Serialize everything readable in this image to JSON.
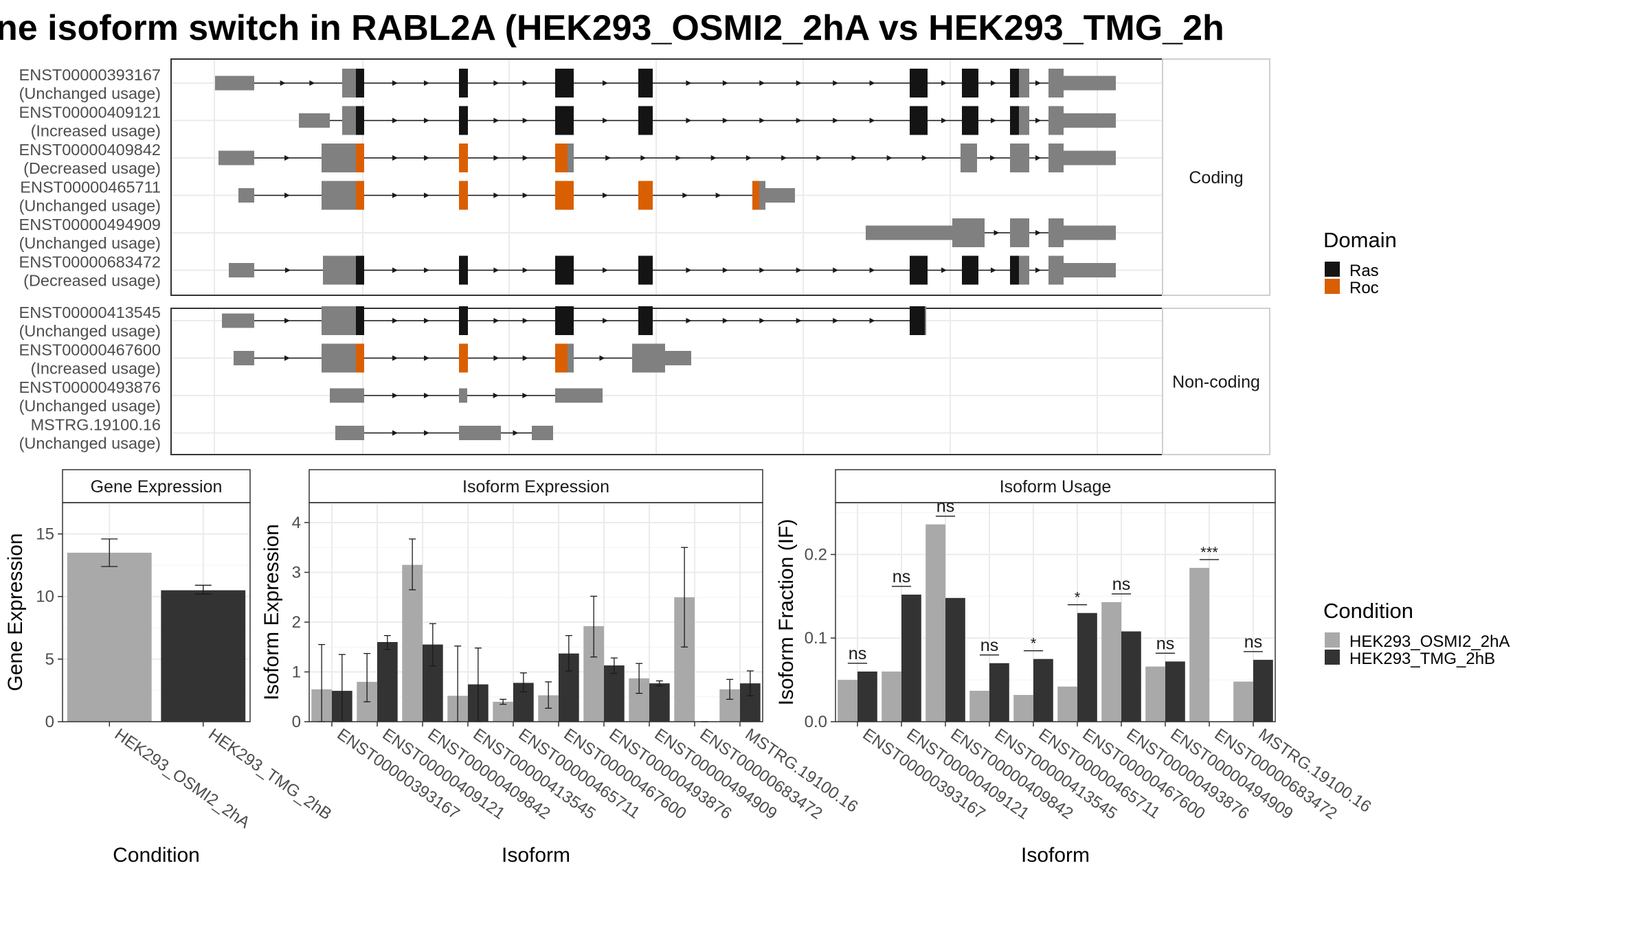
{
  "title": "ne isoform switch in RABL2A (HEK293_OSMI2_2hA vs HEK293_TMG_2h",
  "structure": {
    "panels": [
      {
        "label": "Coding",
        "rows": [
          {
            "id": "ENST00000393167",
            "usage": "(Unchanged usage)"
          },
          {
            "id": "ENST00000409121",
            "usage": "(Increased usage)"
          },
          {
            "id": "ENST00000409842",
            "usage": "(Decreased usage)"
          },
          {
            "id": "ENST00000465711",
            "usage": "(Unchanged usage)"
          },
          {
            "id": "ENST00000494909",
            "usage": "(Unchanged usage)"
          },
          {
            "id": "ENST00000683472",
            "usage": "(Decreased usage)"
          }
        ]
      },
      {
        "label": "Non-coding",
        "rows": [
          {
            "id": "ENST00000413545",
            "usage": "(Unchanged usage)"
          },
          {
            "id": "ENST00000467600",
            "usage": "(Increased usage)"
          },
          {
            "id": "ENST00000493876",
            "usage": "(Unchanged usage)"
          },
          {
            "id": "MSTRG.19100.16",
            "usage": "(Unchanged usage)"
          }
        ]
      }
    ],
    "legend": {
      "title": "Domain",
      "items": [
        {
          "label": "Ras",
          "color": "#141414"
        },
        {
          "label": "Roc",
          "color": "#d95f02"
        }
      ]
    },
    "colors": {
      "utr": "#808080",
      "ras": "#141414",
      "roc": "#d95f02"
    }
  },
  "chart_data": [
    {
      "type": "bar",
      "title": "Gene Expression",
      "xlabel": "Condition",
      "ylabel": "Gene Expression",
      "categories": [
        "HEK293_OSMI2_2hA",
        "HEK293_TMG_2hB"
      ],
      "values": [
        13.5,
        10.5
      ],
      "error": [
        [
          12.4,
          14.6
        ],
        [
          10.2,
          10.9
        ]
      ],
      "yticks": [
        0,
        5,
        10,
        15
      ],
      "ylim": [
        0,
        17.5
      ]
    },
    {
      "type": "bar",
      "title": "Isoform Expression",
      "xlabel": "Isoform",
      "ylabel": "Isoform Expression",
      "categories": [
        "ENST00000393167",
        "ENST00000409121",
        "ENST00000409842",
        "ENST00000413545",
        "ENST00000465711",
        "ENST00000467600",
        "ENST00000493876",
        "ENST00000494909",
        "ENST00000683472",
        "MSTRG.19100.16"
      ],
      "series": [
        {
          "name": "HEK293_OSMI2_2hA",
          "values": [
            0.65,
            0.8,
            3.15,
            0.52,
            0.4,
            0.53,
            1.92,
            0.87,
            2.5,
            0.65
          ],
          "error": [
            [
              0.0,
              1.55
            ],
            [
              0.4,
              1.37
            ],
            [
              2.65,
              3.67
            ],
            [
              0.0,
              1.52
            ],
            [
              0.35,
              0.45
            ],
            [
              0.27,
              0.8
            ],
            [
              1.3,
              2.52
            ],
            [
              0.57,
              1.17
            ],
            [
              1.5,
              3.5
            ],
            [
              0.45,
              0.85
            ]
          ]
        },
        {
          "name": "HEK293_TMG_2hB",
          "values": [
            0.62,
            1.6,
            1.55,
            0.75,
            0.78,
            1.37,
            1.13,
            0.77,
            0.0,
            0.77
          ],
          "error": [
            [
              0.0,
              1.35
            ],
            [
              1.45,
              1.73
            ],
            [
              1.12,
              1.97
            ],
            [
              0.0,
              1.48
            ],
            [
              0.6,
              0.98
            ],
            [
              1.02,
              1.73
            ],
            [
              0.97,
              1.28
            ],
            [
              0.72,
              0.82
            ],
            [
              0.0,
              0.0
            ],
            [
              0.52,
              1.02
            ]
          ]
        }
      ],
      "yticks": [
        0,
        1,
        2,
        3,
        4
      ],
      "ylim": [
        0,
        4.4
      ]
    },
    {
      "type": "bar",
      "title": "Isoform Usage",
      "xlabel": "Isoform",
      "ylabel": "Isoform Fraction (IF)",
      "categories": [
        "ENST00000393167",
        "ENST00000409121",
        "ENST00000409842",
        "ENST00000413545",
        "ENST00000465711",
        "ENST00000467600",
        "ENST00000493876",
        "ENST00000494909",
        "ENST00000683472",
        "MSTRG.19100.16"
      ],
      "series": [
        {
          "name": "HEK293_OSMI2_2hA",
          "values": [
            0.05,
            0.06,
            0.236,
            0.037,
            0.032,
            0.042,
            0.143,
            0.066,
            0.184,
            0.048
          ]
        },
        {
          "name": "HEK293_TMG_2hB",
          "values": [
            0.06,
            0.152,
            0.148,
            0.07,
            0.075,
            0.13,
            0.108,
            0.072,
            0.0,
            0.074
          ]
        }
      ],
      "significance": [
        "ns",
        "ns",
        "ns",
        "ns",
        "*",
        "*",
        "ns",
        "ns",
        "***",
        "ns"
      ],
      "yticks": [
        0.0,
        0.1,
        0.2
      ],
      "ytick_labels": [
        "0.0",
        "0.1",
        "0.2"
      ],
      "ylim": [
        0,
        0.262
      ]
    }
  ],
  "condition_legend": {
    "title": "Condition",
    "items": [
      {
        "label": "HEK293_OSMI2_2hA",
        "color": "#a9a9a9"
      },
      {
        "label": "HEK293_TMG_2hB",
        "color": "#333333"
      }
    ]
  }
}
